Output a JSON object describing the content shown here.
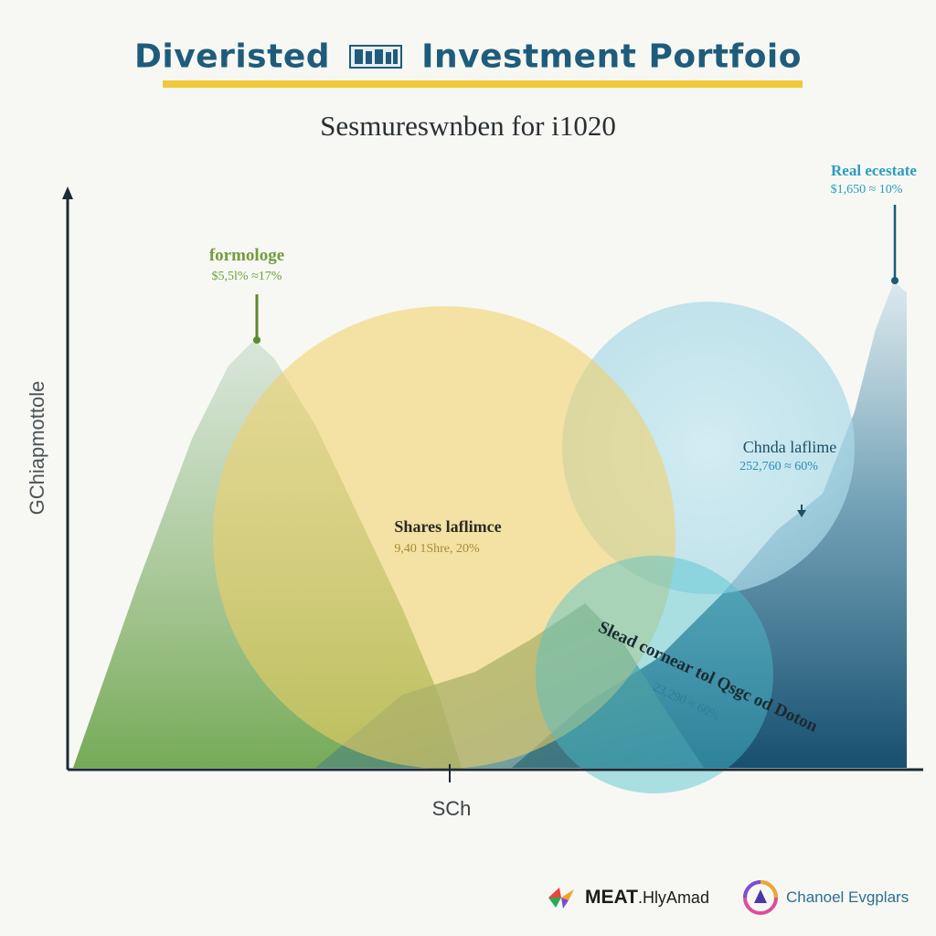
{
  "title": {
    "left": "Diveristed",
    "right": "Investment Portfoio",
    "icon": "banknotes-icon"
  },
  "subtitle": "Sesmureswnben for i1020",
  "colors": {
    "title": "#1f5c7c",
    "underline": "#f0c93a",
    "axis": "#1c2b35",
    "green": "#6f9e3f",
    "yellow": "#f2cf63",
    "teal": "#4cc2cf",
    "lightblue": "#a9dcea",
    "navy": "#1d5a7a"
  },
  "chart_data": {
    "type": "area",
    "ylabel": "GChiapmottole",
    "xlabel": "SCh",
    "series": [
      {
        "name": "formologe",
        "value_label": "$5,5l% ≈17%",
        "color": "#7fae62"
      },
      {
        "name": "Real ecestate",
        "value_label": "$1,650 ≈ 10%",
        "color": "#1d5a7a"
      },
      {
        "name": "Chnda laflime",
        "value_label": "252,760 ≈ 60%",
        "color": "#4b95b0"
      },
      {
        "name": "Shares laflimce",
        "value_label": "9,40 1Shre, 20%",
        "color": "#f2cf63"
      },
      {
        "name": "Slead cornear tol Qsgc od Doton",
        "value_label": "23,290 ≈ 60%",
        "color": "#4cc2cf"
      }
    ]
  },
  "footer": {
    "logo1_text_bold": "MEAT",
    "logo1_text_rest": ".HlyAmad",
    "logo1_icon": "colorful-star-icon",
    "logo2_text": "Chanoel Evgplars",
    "logo2_icon": "circle-logo-icon"
  }
}
